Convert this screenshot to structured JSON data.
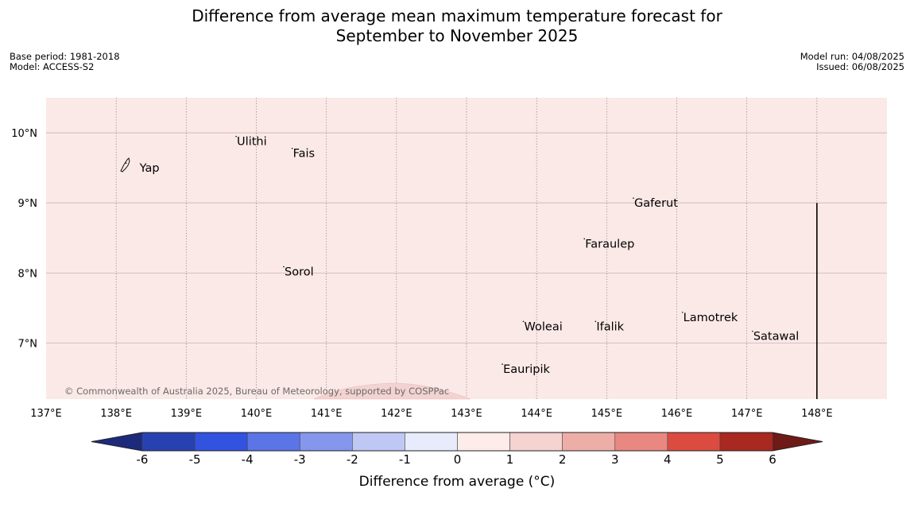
{
  "title": {
    "line1": "Difference from average mean maximum temperature forecast for",
    "line2": "September to November 2025"
  },
  "info_left": {
    "base_period": "Base period: 1981-2018",
    "model": "Model: ACCESS-S2"
  },
  "info_right": {
    "model_run": "Model run: 04/08/2025",
    "issued": "Issued: 06/08/2025"
  },
  "map": {
    "background_color": "#fbe9e7",
    "lon_range": [
      137,
      149
    ],
    "lat_range": [
      6.2,
      10.5
    ],
    "lon_ticks": [
      {
        "value": 137,
        "label": "137°E"
      },
      {
        "value": 138,
        "label": "138°E"
      },
      {
        "value": 139,
        "label": "139°E"
      },
      {
        "value": 140,
        "label": "140°E"
      },
      {
        "value": 141,
        "label": "141°E"
      },
      {
        "value": 142,
        "label": "142°E"
      },
      {
        "value": 143,
        "label": "143°E"
      },
      {
        "value": 144,
        "label": "144°E"
      },
      {
        "value": 145,
        "label": "145°E"
      },
      {
        "value": 146,
        "label": "146°E"
      },
      {
        "value": 147,
        "label": "147°E"
      },
      {
        "value": 148,
        "label": "148°E"
      }
    ],
    "lat_ticks": [
      {
        "value": 10,
        "label": "10°N"
      },
      {
        "value": 9,
        "label": "9°N"
      },
      {
        "value": 8,
        "label": "8°N"
      },
      {
        "value": 7,
        "label": "7°N"
      }
    ],
    "places": [
      {
        "name": "Yap",
        "lon": 138.13,
        "lat": 9.5
      },
      {
        "name": "Ulithi",
        "lon": 139.7,
        "lat": 9.88
      },
      {
        "name": "Fais",
        "lon": 140.5,
        "lat": 9.71
      },
      {
        "name": "Gaferut",
        "lon": 145.37,
        "lat": 9.0
      },
      {
        "name": "Faraulep",
        "lon": 144.67,
        "lat": 8.42
      },
      {
        "name": "Sorol",
        "lon": 140.38,
        "lat": 8.02
      },
      {
        "name": "Lamotrek",
        "lon": 146.07,
        "lat": 7.37
      },
      {
        "name": "Woleai",
        "lon": 143.8,
        "lat": 7.24
      },
      {
        "name": "Ifalik",
        "lon": 144.83,
        "lat": 7.24
      },
      {
        "name": "Satawal",
        "lon": 147.07,
        "lat": 7.1
      },
      {
        "name": "Eauripik",
        "lon": 143.5,
        "lat": 6.63
      }
    ],
    "boundary_line": {
      "lon": 148,
      "lat_top": 9.0
    },
    "copyright": "© Commonwealth of Australia 2025, Bureau of Meteorology, supported by COSPPac"
  },
  "colorbar": {
    "title": "Difference from average (°C)",
    "ticks": [
      "-6",
      "-5",
      "-4",
      "-3",
      "-2",
      "-1",
      "0",
      "1",
      "2",
      "3",
      "4",
      "5",
      "6"
    ],
    "low_extend_color": "#1d2a7a",
    "high_extend_color": "#6e1a16",
    "colors": [
      "#2841b0",
      "#3252e0",
      "#5b74e6",
      "#8597ec",
      "#bfc8f4",
      "#e8ebfb",
      "#fdecea",
      "#f5d3d0",
      "#eeaea8",
      "#e88880",
      "#dc4b40",
      "#a9281f"
    ]
  }
}
